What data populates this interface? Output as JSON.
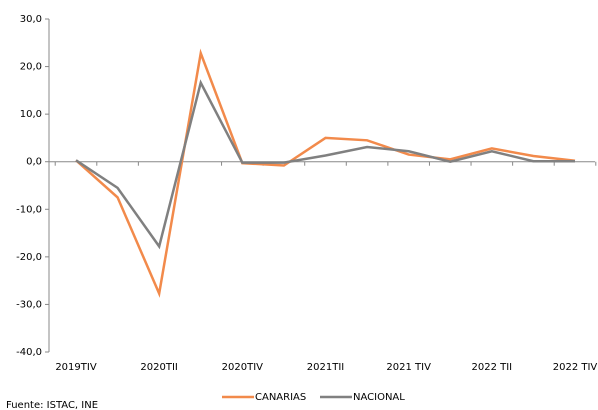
{
  "chart_data": {
    "type": "line",
    "categories": [
      "2019TIV",
      null,
      "2020TII",
      null,
      "2020TIV",
      null,
      "2021TII",
      null,
      "2021 TIV",
      null,
      "2022 TII",
      null,
      "2022 TIV"
    ],
    "series": [
      {
        "name": "CANARIAS",
        "color": "#f28a4b",
        "values": [
          0.3,
          -7.5,
          -27.7,
          22.8,
          -0.3,
          -0.8,
          5.0,
          4.5,
          1.5,
          0.5,
          2.8,
          1.2,
          0.2
        ]
      },
      {
        "name": "NACIONAL",
        "color": "#808080",
        "values": [
          0.3,
          -5.5,
          -17.8,
          16.6,
          -0.2,
          -0.2,
          1.3,
          3.1,
          2.2,
          0.0,
          2.2,
          0.1,
          0.1
        ]
      }
    ],
    "ylim": [
      -40,
      30
    ],
    "yticks": [
      {
        "value": -40,
        "label": "-40,0"
      },
      {
        "value": -30,
        "label": "-30,0"
      },
      {
        "value": -20,
        "label": "-20,0"
      },
      {
        "value": -10,
        "label": "-10,0"
      },
      {
        "value": 0,
        "label": "0,0"
      },
      {
        "value": 10,
        "label": "10,0"
      },
      {
        "value": 20,
        "label": "20,0"
      },
      {
        "value": 30,
        "label": "30,0"
      }
    ],
    "source": "Fuente: ISTAC, INE"
  }
}
